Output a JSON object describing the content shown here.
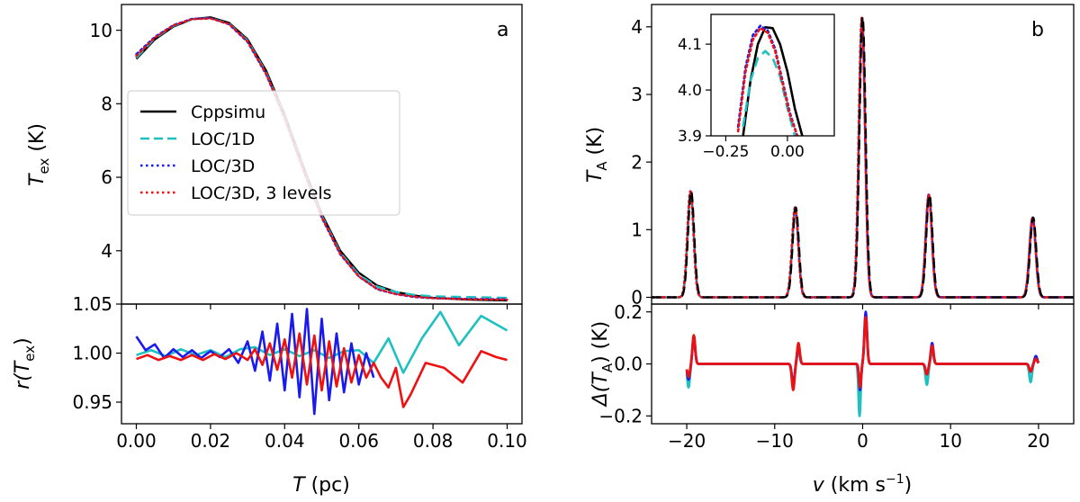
{
  "colors": {
    "cppsimu": "#000000",
    "loc1d": "#1fc0c0",
    "loc3d": "#1a1aee",
    "loc3d3": "#ee1111"
  },
  "chart_data": [
    {
      "id": "a-top",
      "type": "line",
      "panel_label": "a",
      "xlim": [
        -0.004,
        0.104
      ],
      "ylim": [
        2.55,
        10.7
      ],
      "ylabel_main": "T",
      "ylabel_sub": "ex",
      "ylabel_unit": " (K)",
      "yticks": [
        4,
        6,
        8,
        10
      ],
      "ytick_labels": [
        "4",
        "6",
        "8",
        "10"
      ],
      "xticks": [
        0.0,
        0.02,
        0.04,
        0.06,
        0.08,
        0.1
      ],
      "legend": {
        "position": "center-left",
        "entries": [
          {
            "label": "Cppsimu",
            "color": "#000000",
            "style": "solid"
          },
          {
            "label": "LOC/1D",
            "color": "#1fc0c0",
            "style": "dashed"
          },
          {
            "label": "LOC/3D",
            "color": "#1a1aee",
            "style": "dotted"
          },
          {
            "label": "LOC/3D, 3 levels",
            "color": "#ee1111",
            "style": "dotted"
          }
        ]
      },
      "series": [
        {
          "name": "Cppsimu",
          "color": "#000000",
          "style": "solid",
          "x": [
            0,
            0.005,
            0.01,
            0.015,
            0.02,
            0.025,
            0.03,
            0.035,
            0.04,
            0.045,
            0.05,
            0.055,
            0.06,
            0.065,
            0.07,
            0.075,
            0.08,
            0.09,
            0.1
          ],
          "y": [
            9.22,
            9.75,
            10.1,
            10.3,
            10.35,
            10.2,
            9.75,
            8.9,
            7.7,
            6.3,
            5.0,
            4.0,
            3.4,
            3.05,
            2.88,
            2.78,
            2.72,
            2.67,
            2.65
          ]
        },
        {
          "name": "LOC/1D",
          "color": "#1fc0c0",
          "style": "dashed",
          "x": [
            0,
            0.005,
            0.01,
            0.015,
            0.02,
            0.025,
            0.03,
            0.035,
            0.04,
            0.045,
            0.05,
            0.055,
            0.06,
            0.065,
            0.07,
            0.075,
            0.08,
            0.09,
            0.1
          ],
          "y": [
            9.25,
            9.78,
            10.12,
            10.3,
            10.33,
            10.18,
            9.72,
            8.85,
            7.65,
            6.25,
            4.95,
            3.95,
            3.35,
            3.02,
            2.88,
            2.8,
            2.76,
            2.74,
            2.72
          ]
        },
        {
          "name": "LOC/3D",
          "color": "#1a1aee",
          "style": "dotted",
          "x": [
            0,
            0.005,
            0.01,
            0.015,
            0.02,
            0.025,
            0.03,
            0.035,
            0.04,
            0.045,
            0.05,
            0.055,
            0.06,
            0.065,
            0.07,
            0.075,
            0.08,
            0.09,
            0.1
          ],
          "y": [
            9.35,
            9.82,
            10.14,
            10.31,
            10.33,
            10.16,
            9.68,
            8.8,
            7.6,
            6.2,
            4.9,
            3.9,
            3.3,
            2.95,
            2.82,
            2.74,
            2.71,
            2.69,
            2.68
          ]
        },
        {
          "name": "LOC/3D, 3 levels",
          "color": "#ee1111",
          "style": "dotted",
          "x": [
            0,
            0.005,
            0.01,
            0.015,
            0.02,
            0.025,
            0.03,
            0.035,
            0.04,
            0.045,
            0.05,
            0.055,
            0.06,
            0.065,
            0.07,
            0.075,
            0.08,
            0.09,
            0.1
          ],
          "y": [
            9.3,
            9.8,
            10.13,
            10.3,
            10.32,
            10.17,
            9.7,
            8.82,
            7.62,
            6.22,
            4.92,
            3.92,
            3.3,
            2.96,
            2.82,
            2.75,
            2.71,
            2.68,
            2.67
          ]
        }
      ]
    },
    {
      "id": "a-bottom",
      "type": "line",
      "xlim": [
        -0.004,
        0.104
      ],
      "ylim": [
        0.928,
        1.05
      ],
      "xlabel_main": "T",
      "xlabel_unit": " (pc)",
      "ylabel_main": "r(T",
      "ylabel_sub": "ex",
      "ylabel_end": ")",
      "yticks": [
        0.95,
        1.0,
        1.05
      ],
      "ytick_labels": [
        "0.95",
        "1.00",
        "1.05"
      ],
      "xticks": [
        0.0,
        0.02,
        0.04,
        0.06,
        0.08,
        0.1
      ],
      "xtick_labels": [
        "0.00",
        "0.02",
        "0.04",
        "0.06",
        "0.08",
        "0.10"
      ],
      "series": [
        {
          "name": "LOC/1D",
          "color": "#1fc0c0",
          "style": "solid",
          "x": [
            0,
            0.004,
            0.008,
            0.012,
            0.016,
            0.02,
            0.024,
            0.028,
            0.032,
            0.036,
            0.04,
            0.044,
            0.048,
            0.052,
            0.056,
            0.06,
            0.064,
            0.068,
            0.072,
            0.077,
            0.082,
            0.087,
            0.093,
            0.1
          ],
          "y": [
            0.998,
            1.003,
            0.997,
            1.004,
            0.998,
            1.003,
            0.996,
            1.004,
            1.006,
            0.998,
            1.004,
            0.997,
            1.003,
            0.995,
            1.002,
            1.003,
            0.99,
            1.015,
            0.98,
            1.015,
            1.042,
            1.008,
            1.038,
            1.023
          ]
        },
        {
          "name": "LOC/3D",
          "color": "#1a1aee",
          "style": "solid",
          "x": [
            0,
            0.0025,
            0.005,
            0.0075,
            0.01,
            0.0125,
            0.015,
            0.0175,
            0.02,
            0.0225,
            0.025,
            0.0275,
            0.03,
            0.032,
            0.034,
            0.036,
            0.038,
            0.04,
            0.042,
            0.044,
            0.046,
            0.048,
            0.05,
            0.052,
            0.054,
            0.056,
            0.058,
            0.06,
            0.062,
            0.064
          ],
          "y": [
            1.017,
            1.003,
            1.009,
            0.995,
            1.004,
            0.996,
            1.003,
            0.995,
            1.002,
            0.996,
            1.004,
            0.99,
            1.012,
            0.982,
            1.022,
            0.972,
            1.03,
            0.962,
            1.04,
            0.955,
            1.045,
            0.938,
            1.035,
            0.952,
            1.02,
            0.96,
            1.01,
            0.968,
            1.0,
            0.975
          ]
        },
        {
          "name": "LOC/3D, 3 levels",
          "color": "#ee1111",
          "style": "solid",
          "x": [
            0,
            0.003,
            0.006,
            0.009,
            0.012,
            0.015,
            0.018,
            0.021,
            0.024,
            0.027,
            0.03,
            0.032,
            0.034,
            0.036,
            0.038,
            0.04,
            0.042,
            0.044,
            0.046,
            0.048,
            0.05,
            0.052,
            0.054,
            0.056,
            0.058,
            0.06,
            0.062,
            0.064,
            0.066,
            0.068,
            0.07,
            0.072,
            0.074,
            0.078,
            0.083,
            0.088,
            0.093,
            0.097,
            0.1
          ],
          "y": [
            0.994,
            0.998,
            0.993,
            0.997,
            0.993,
            0.998,
            0.993,
            0.999,
            0.994,
            1.0,
            0.993,
            1.004,
            0.988,
            1.01,
            0.983,
            1.014,
            0.975,
            1.02,
            0.968,
            1.018,
            0.962,
            1.012,
            0.966,
            1.005,
            0.97,
            0.998,
            0.975,
            0.99,
            0.975,
            0.965,
            0.985,
            0.945,
            0.958,
            0.99,
            0.985,
            0.97,
            1.002,
            0.996,
            0.993
          ]
        }
      ]
    },
    {
      "id": "b-top",
      "type": "line",
      "panel_label": "b",
      "xlim": [
        -24,
        24
      ],
      "ylim": [
        -0.1,
        4.33
      ],
      "ylabel_main": "T",
      "ylabel_sub": "A",
      "ylabel_unit": " (K)",
      "yticks": [
        0,
        1,
        2,
        3,
        4
      ],
      "ytick_labels": [
        "0",
        "1",
        "2",
        "3",
        "4"
      ],
      "xticks": [
        -20,
        -10,
        0,
        10,
        20
      ],
      "lines": [
        {
          "center": -19.5,
          "peak": 1.57,
          "width": 0.35
        },
        {
          "center": -7.6,
          "peak": 1.33,
          "width": 0.35
        },
        {
          "center": 0.0,
          "peak": 4.15,
          "width": 0.35
        },
        {
          "center": 7.6,
          "peak": 1.52,
          "width": 0.35
        },
        {
          "center": 19.4,
          "peak": 1.18,
          "width": 0.35
        }
      ],
      "series": [
        {
          "name": "Cppsimu",
          "color": "#000000",
          "style": "dashed",
          "peak_scale": 1.0,
          "center_offset": 0.0
        },
        {
          "name": "LOC/1D",
          "color": "#1fc0c0",
          "style": "solid",
          "peak_scale": 0.985,
          "center_offset": -0.05
        },
        {
          "name": "LOC/3D",
          "color": "#1a1aee",
          "style": "dotted",
          "peak_scale": 1.0,
          "center_offset": -0.08
        },
        {
          "name": "LOC/3D, 3 levels",
          "color": "#ee1111",
          "style": "dotted",
          "peak_scale": 0.998,
          "center_offset": -0.08
        }
      ]
    },
    {
      "id": "b-inset",
      "type": "line",
      "xlim": [
        -0.31,
        0.19
      ],
      "ylim": [
        3.9,
        4.165
      ],
      "yticks": [
        3.9,
        4.0,
        4.1
      ],
      "ytick_labels": [
        "3.9",
        "4.0",
        "4.1"
      ],
      "xticks": [
        -0.25,
        0.0
      ],
      "xtick_labels": [
        "−0.25",
        "0.00"
      ],
      "series": [
        {
          "name": "Cppsimu",
          "color": "#000000",
          "style": "solid",
          "x": [
            -0.18,
            -0.15,
            -0.12,
            -0.09,
            -0.06,
            -0.03,
            0.0,
            0.03,
            0.06
          ],
          "y": [
            3.9,
            4.02,
            4.1,
            4.137,
            4.135,
            4.1,
            4.04,
            3.96,
            3.9
          ]
        },
        {
          "name": "LOC/1D",
          "color": "#1fc0c0",
          "style": "dashed",
          "x": [
            -0.18,
            -0.15,
            -0.12,
            -0.09,
            -0.06,
            -0.03,
            0.0,
            0.03
          ],
          "y": [
            3.92,
            4.02,
            4.07,
            4.085,
            4.07,
            4.03,
            3.96,
            3.9
          ]
        },
        {
          "name": "LOC/3D",
          "color": "#1a1aee",
          "style": "dotted",
          "x": [
            -0.2,
            -0.17,
            -0.14,
            -0.11,
            -0.08,
            -0.05,
            -0.02,
            0.01,
            0.04
          ],
          "y": [
            3.92,
            4.05,
            4.12,
            4.14,
            4.13,
            4.09,
            4.02,
            3.95,
            3.9
          ]
        },
        {
          "name": "LOC/3D, 3 levels",
          "color": "#ee1111",
          "style": "dotted",
          "x": [
            -0.2,
            -0.17,
            -0.14,
            -0.11,
            -0.08,
            -0.05,
            -0.02,
            0.01,
            0.04
          ],
          "y": [
            3.91,
            4.04,
            4.11,
            4.135,
            4.125,
            4.085,
            4.015,
            3.945,
            3.9
          ]
        }
      ]
    },
    {
      "id": "b-bottom",
      "type": "line",
      "xlim": [
        -24,
        24
      ],
      "ylim": [
        -0.23,
        0.23
      ],
      "xlabel_main": "v",
      "xlabel_unit": " (km s",
      "xlabel_sup": "−1",
      "xlabel_end": ")",
      "ylabel_main": "Δ(T",
      "ylabel_sub": "A",
      "ylabel_end": ") (K)",
      "yticks": [
        -0.2,
        0.0,
        0.2
      ],
      "ytick_labels": [
        "−0.2",
        "0.0",
        "0.2"
      ],
      "xticks": [
        -20,
        -10,
        0,
        10,
        20
      ],
      "xtick_labels": [
        "−20",
        "−10",
        "0",
        "10",
        "20"
      ],
      "series": [
        {
          "name": "LOC/1D",
          "color": "#1fc0c0",
          "style": "solid",
          "features": [
            [
              -19.8,
              -0.09,
              0.15
            ],
            [
              -19.2,
              0.11,
              0.15
            ],
            [
              -7.9,
              -0.09,
              0.15
            ],
            [
              -7.3,
              0.05,
              0.15
            ],
            [
              -0.35,
              -0.2,
              0.12
            ],
            [
              0.35,
              0.19,
              0.15
            ],
            [
              7.3,
              -0.08,
              0.15
            ],
            [
              7.9,
              0.05,
              0.15
            ],
            [
              19.1,
              -0.07,
              0.15
            ],
            [
              19.7,
              0.03,
              0.15
            ]
          ]
        },
        {
          "name": "LOC/3D",
          "color": "#1a1aee",
          "style": "solid",
          "features": [
            [
              -19.8,
              -0.06,
              0.15
            ],
            [
              -19.2,
              0.1,
              0.15
            ],
            [
              -7.9,
              -0.08,
              0.15
            ],
            [
              -7.3,
              0.07,
              0.15
            ],
            [
              -0.3,
              -0.1,
              0.12
            ],
            [
              0.35,
              0.2,
              0.15
            ],
            [
              7.3,
              -0.04,
              0.15
            ],
            [
              7.9,
              0.08,
              0.15
            ],
            [
              19.1,
              -0.03,
              0.15
            ],
            [
              19.7,
              0.03,
              0.15
            ]
          ]
        },
        {
          "name": "LOC/3D, 3 levels",
          "color": "#ee1111",
          "style": "solid",
          "features": [
            [
              -19.8,
              -0.05,
              0.15
            ],
            [
              -19.2,
              0.11,
              0.15
            ],
            [
              -7.9,
              -0.1,
              0.15
            ],
            [
              -7.3,
              0.08,
              0.15
            ],
            [
              -0.3,
              -0.09,
              0.12
            ],
            [
              0.35,
              0.18,
              0.15
            ],
            [
              7.3,
              -0.04,
              0.15
            ],
            [
              7.9,
              0.07,
              0.15
            ],
            [
              19.1,
              -0.03,
              0.15
            ],
            [
              19.7,
              0.02,
              0.15
            ]
          ]
        }
      ]
    }
  ]
}
